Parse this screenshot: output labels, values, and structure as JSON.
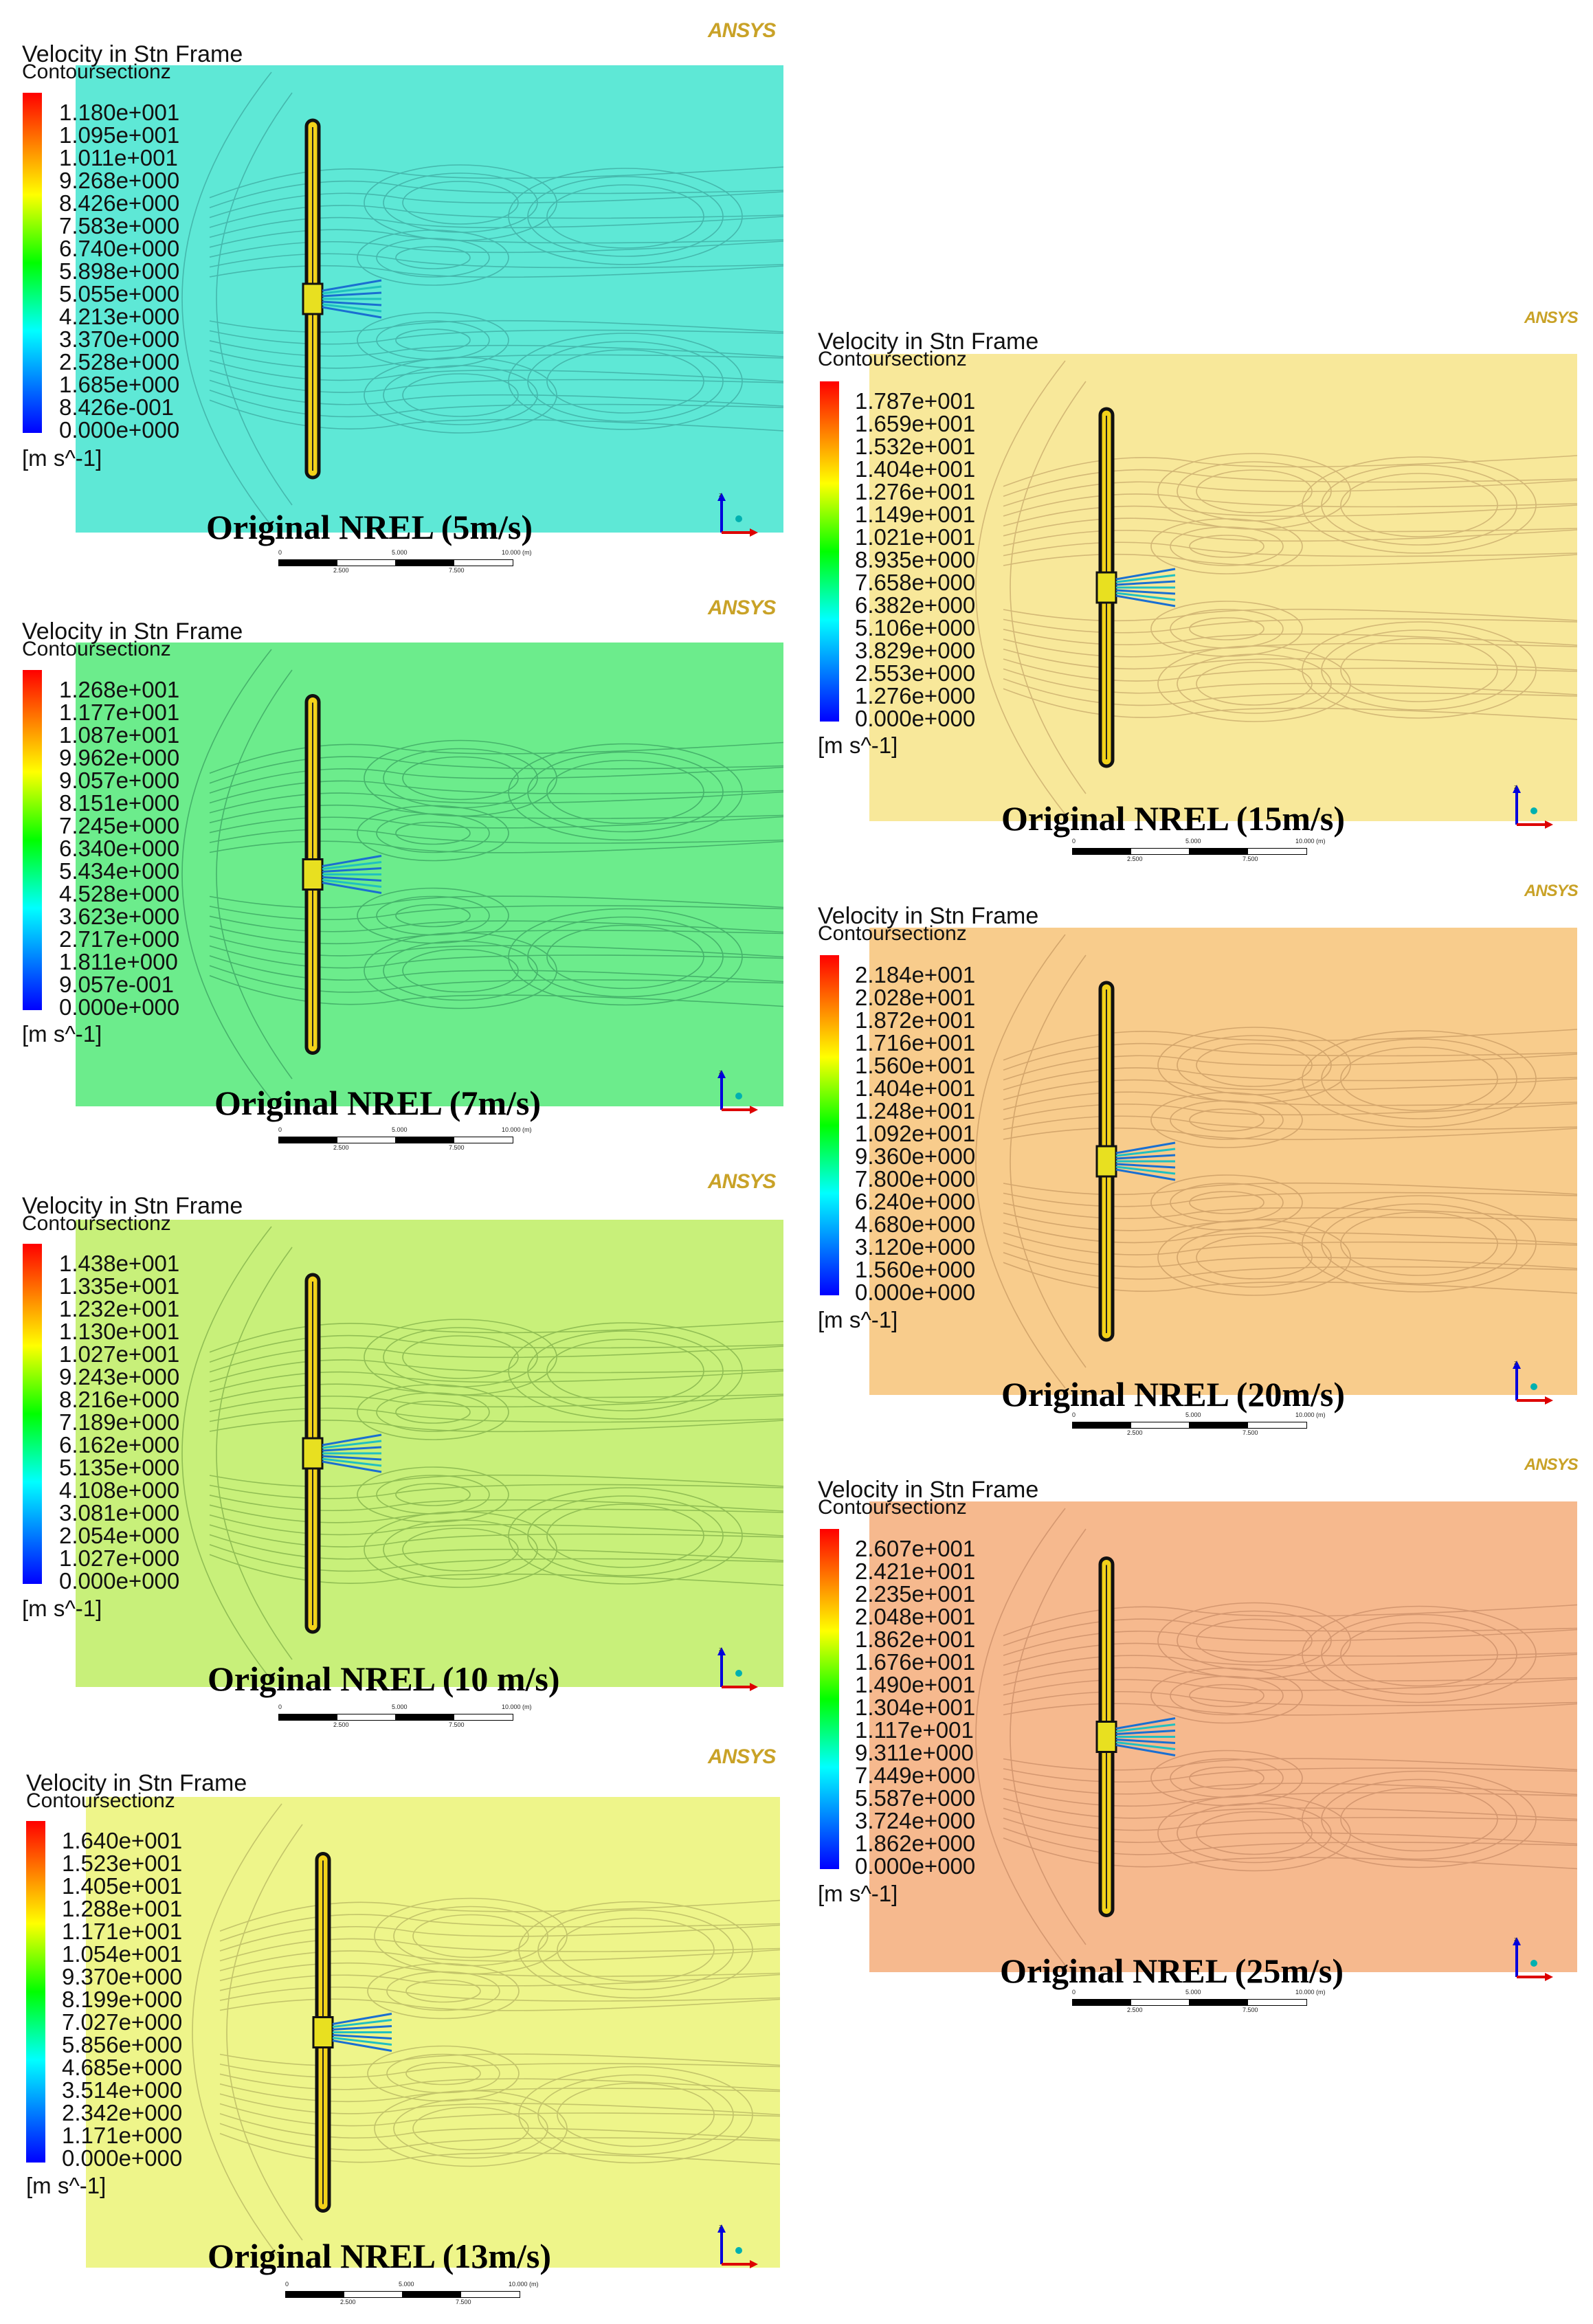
{
  "panels": [
    {
      "id": "5ms",
      "header_title": "Velocity in Stn Frame",
      "header_subtitle": "Contoursectionz",
      "logo": "ANSYS",
      "ticks": [
        "1.180e+001",
        "1.095e+001",
        "1.011e+001",
        "9.268e+000",
        "8.426e+000",
        "7.583e+000",
        "6.740e+000",
        "5.898e+000",
        "5.055e+000",
        "4.213e+000",
        "3.370e+000",
        "2.528e+000",
        "1.685e+000",
        "8.426e-001",
        "0.000e+000"
      ],
      "unit": "[m s^-1]",
      "caption": "Original NREL (5m/s)",
      "scale_labels": [
        "0",
        "5.000",
        "10.000 (m)",
        "2.500",
        "7.500"
      ],
      "background": "#5ee8d6",
      "contour_color": "#3da9a0"
    },
    {
      "id": "7ms",
      "header_title": "Velocity in Stn Frame",
      "header_subtitle": "Contoursectionz",
      "logo": "ANSYS",
      "ticks": [
        "1.268e+001",
        "1.177e+001",
        "1.087e+001",
        "9.962e+000",
        "9.057e+000",
        "8.151e+000",
        "7.245e+000",
        "6.340e+000",
        "5.434e+000",
        "4.528e+000",
        "3.623e+000",
        "2.717e+000",
        "1.811e+000",
        "9.057e-001",
        "0.000e+000"
      ],
      "unit": "[m s^-1]",
      "caption": "Original NREL (7m/s)",
      "scale_labels": [
        "0",
        "5.000",
        "10.000 (m)",
        "2.500",
        "7.500"
      ],
      "background": "#6cec8c",
      "contour_color": "#3aa060"
    },
    {
      "id": "10ms",
      "header_title": "Velocity in Stn Frame",
      "header_subtitle": "Contoursectionz",
      "logo": "ANSYS",
      "ticks": [
        "1.438e+001",
        "1.335e+001",
        "1.232e+001",
        "1.130e+001",
        "1.027e+001",
        "9.243e+000",
        "8.216e+000",
        "7.189e+000",
        "6.162e+000",
        "5.135e+000",
        "4.108e+000",
        "3.081e+000",
        "2.054e+000",
        "1.027e+000",
        "0.000e+000"
      ],
      "unit": "[m s^-1]",
      "caption": "Original NREL (10 m/s)",
      "scale_labels": [
        "0",
        "5.000",
        "10.000 (m)",
        "2.500",
        "7.500"
      ],
      "background": "#c8f07a",
      "contour_color": "#7fae48"
    },
    {
      "id": "13ms",
      "header_title": "Velocity in Stn Frame",
      "header_subtitle": "Contoursectionz",
      "logo": "ANSYS",
      "ticks": [
        "1.640e+001",
        "1.523e+001",
        "1.405e+001",
        "1.288e+001",
        "1.171e+001",
        "1.054e+001",
        "9.370e+000",
        "8.199e+000",
        "7.027e+000",
        "5.856e+000",
        "4.685e+000",
        "3.514e+000",
        "2.342e+000",
        "1.171e+000",
        "0.000e+000"
      ],
      "unit": "[m s^-1]",
      "caption": "Original NREL (13m/s)",
      "scale_labels": [
        "0",
        "5.000",
        "10.000 (m)",
        "2.500",
        "7.500"
      ],
      "background": "#eef58a",
      "contour_color": "#b5b460"
    },
    {
      "id": "15ms",
      "header_title": "Velocity in Stn Frame",
      "header_subtitle": "Contoursectionz",
      "logo": "ANSYS",
      "ticks": [
        "1.787e+001",
        "1.659e+001",
        "1.532e+001",
        "1.404e+001",
        "1.276e+001",
        "1.149e+001",
        "1.021e+001",
        "8.935e+000",
        "7.658e+000",
        "6.382e+000",
        "5.106e+000",
        "3.829e+000",
        "2.553e+000",
        "1.276e+000",
        "0.000e+000"
      ],
      "unit": "[m s^-1]",
      "caption": "Original NREL (15m/s)",
      "scale_labels": [
        "0",
        "5.000",
        "10.000 (m)",
        "2.500",
        "7.500"
      ],
      "background": "#f8e89a",
      "contour_color": "#c7a86a"
    },
    {
      "id": "20ms",
      "header_title": "Velocity in Stn Frame",
      "header_subtitle": "Contoursectionz",
      "logo": "ANSYS",
      "ticks": [
        "2.184e+001",
        "2.028e+001",
        "1.872e+001",
        "1.716e+001",
        "1.560e+001",
        "1.404e+001",
        "1.248e+001",
        "1.092e+001",
        "9.360e+000",
        "7.800e+000",
        "6.240e+000",
        "4.680e+000",
        "3.120e+000",
        "1.560e+000",
        "0.000e+000"
      ],
      "unit": "[m s^-1]",
      "caption": "Original NREL (20m/s)",
      "scale_labels": [
        "0",
        "5.000",
        "10.000 (m)",
        "2.500",
        "7.500"
      ],
      "background": "#f8cc8c",
      "contour_color": "#c89a62"
    },
    {
      "id": "25ms",
      "header_title": "Velocity in Stn Frame",
      "header_subtitle": "Contoursectionz",
      "logo": "ANSYS",
      "ticks": [
        "2.607e+001",
        "2.421e+001",
        "2.235e+001",
        "2.048e+001",
        "1.862e+001",
        "1.676e+001",
        "1.490e+001",
        "1.304e+001",
        "1.117e+001",
        "9.311e+000",
        "7.449e+000",
        "5.587e+000",
        "3.724e+000",
        "1.862e+000",
        "0.000e+000"
      ],
      "unit": "[m s^-1]",
      "caption": "Original NREL (25m/s)",
      "scale_labels": [
        "0",
        "5.000",
        "10.000 (m)",
        "2.500",
        "7.500"
      ],
      "background": "#f6b98e",
      "contour_color": "#c98c66"
    }
  ]
}
